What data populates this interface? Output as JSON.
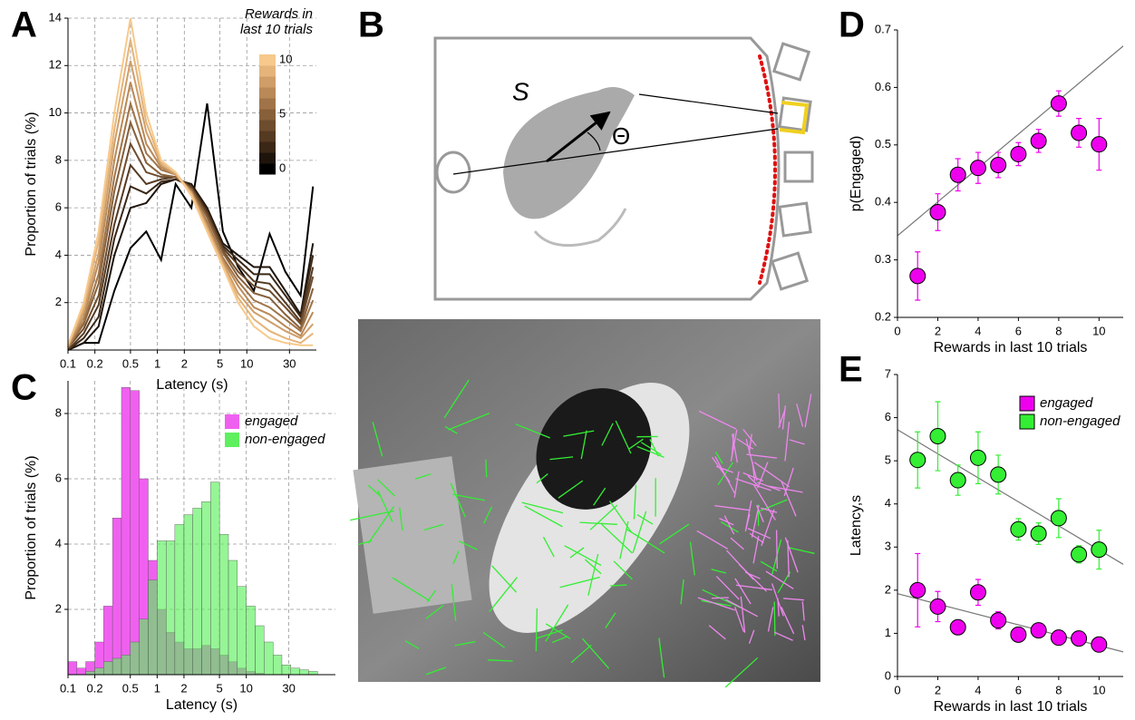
{
  "chart_data": [
    {
      "panel": "A",
      "type": "line",
      "xlabel": "Latency (s)",
      "ylabel": "Proportion of trials (%)",
      "xscale": "log",
      "x": [
        0.1,
        0.15,
        0.22,
        0.33,
        0.5,
        0.75,
        1.1,
        1.6,
        2.4,
        3.6,
        5.4,
        8,
        12,
        18,
        27,
        40,
        55
      ],
      "xlim": [
        0.1,
        60
      ],
      "xticks": [
        0.1,
        0.2,
        0.5,
        1,
        2,
        5,
        10,
        30
      ],
      "ylim": [
        0,
        14
      ],
      "yticks": [
        2,
        4,
        6,
        8,
        10,
        12,
        14
      ],
      "grid": true,
      "colorbar": {
        "title_lines": [
          "Rewards in",
          "last 10 trials"
        ],
        "lim": [
          0,
          10
        ],
        "ticks": [
          0,
          5,
          10
        ]
      },
      "series": [
        {
          "color": "#000000",
          "values": [
            0,
            0.3,
            0.3,
            2.5,
            4.3,
            5,
            3.8,
            7,
            6,
            10.4,
            5,
            3.5,
            2.5,
            4.9,
            3.3,
            2.3,
            6.9
          ]
        },
        {
          "color": "#1e140c",
          "values": [
            0,
            0.3,
            1,
            4,
            6,
            6.2,
            7,
            7.2,
            7,
            6,
            4.5,
            4,
            3.5,
            3.5,
            2.5,
            1.5,
            4.5
          ]
        },
        {
          "color": "#3a2716",
          "values": [
            0,
            0.5,
            1.4,
            4.7,
            6.9,
            6.6,
            7.1,
            7.2,
            6.9,
            5.9,
            4.4,
            3.8,
            3.2,
            3.2,
            2.3,
            1.4,
            4.0
          ]
        },
        {
          "color": "#553a22",
          "values": [
            0,
            0.7,
            1.9,
            5.3,
            7.8,
            7.0,
            7.2,
            7.3,
            6.9,
            5.8,
            4.3,
            3.6,
            2.9,
            2.8,
            2.0,
            1.2,
            3.5
          ]
        },
        {
          "color": "#6e4c2e",
          "values": [
            0.1,
            0.9,
            2.3,
            6,
            8.7,
            7.5,
            7.3,
            7.3,
            6.8,
            5.7,
            4.2,
            3.3,
            2.7,
            2.5,
            1.8,
            1.1,
            3.1
          ]
        },
        {
          "color": "#87603a",
          "values": [
            0.1,
            1.1,
            2.8,
            6.7,
            9.6,
            7.9,
            7.4,
            7.3,
            6.8,
            5.6,
            4.1,
            3.1,
            2.4,
            2.2,
            1.5,
            0.9,
            2.6
          ]
        },
        {
          "color": "#a07448",
          "values": [
            0.1,
            1.2,
            3.2,
            7.3,
            10.4,
            8.3,
            7.6,
            7.4,
            6.7,
            5.4,
            3.9,
            2.9,
            2.1,
            1.8,
            1.3,
            0.8,
            2.1
          ]
        },
        {
          "color": "#b98957",
          "values": [
            0.1,
            1.4,
            3.7,
            8,
            11.3,
            8.7,
            7.7,
            7.4,
            6.7,
            5.3,
            3.8,
            2.7,
            1.8,
            1.5,
            1.0,
            0.6,
            1.6
          ]
        },
        {
          "color": "#cf9e68",
          "values": [
            0.2,
            1.6,
            4.1,
            8.7,
            12.2,
            9.2,
            7.8,
            7.4,
            6.6,
            5.2,
            3.7,
            2.4,
            1.6,
            1.2,
            0.8,
            0.5,
            1.1
          ]
        },
        {
          "color": "#e4b47a",
          "values": [
            0.2,
            1.8,
            4.6,
            9.3,
            13.1,
            9.6,
            7.9,
            7.5,
            6.6,
            5.1,
            3.6,
            2.2,
            1.3,
            0.8,
            0.5,
            0.3,
            0.7
          ]
        },
        {
          "color": "#f7c98c",
          "values": [
            0.2,
            2,
            5,
            10,
            14,
            10,
            8,
            7.5,
            6.5,
            5,
            3.5,
            2,
            1,
            0.5,
            0.3,
            0.2,
            0.2
          ]
        }
      ]
    },
    {
      "panel": "C",
      "type": "histogram",
      "xlabel": "Latency (s)",
      "ylabel": "Proportion of trials (%)",
      "xscale": "log",
      "bins": [
        0.1,
        0.126,
        0.158,
        0.2,
        0.251,
        0.316,
        0.398,
        0.501,
        0.631,
        0.794,
        1,
        1.26,
        1.58,
        2,
        2.51,
        3.16,
        3.98,
        5.01,
        6.31,
        7.94,
        10,
        12.6,
        15.8,
        20,
        25.1,
        31.6,
        39.8,
        50.1,
        63.1
      ],
      "xlim": [
        0.1,
        100
      ],
      "xticks": [
        0.1,
        0.2,
        0.5,
        1,
        2,
        5,
        10,
        30
      ],
      "ylim": [
        0,
        9
      ],
      "yticks": [
        2,
        4,
        6,
        8
      ],
      "grid": true,
      "series": [
        {
          "name": "engaged",
          "color": "#f060f0",
          "values": [
            0.4,
            0.2,
            0.4,
            1.0,
            2.1,
            4.8,
            8.8,
            8.7,
            6.0,
            3.5,
            2.0,
            1.3,
            1.0,
            0.8,
            0.8,
            0.9,
            0.8,
            0.6,
            0.4,
            0.2,
            0.1,
            0.05,
            0,
            0,
            0,
            0,
            0,
            0
          ]
        },
        {
          "name": "non-engaged",
          "color": "#5ef05e",
          "values": [
            0,
            0,
            0.1,
            0.2,
            0.4,
            0.5,
            0.6,
            1.0,
            1.7,
            2.9,
            4.1,
            4.1,
            4.6,
            4.9,
            5.1,
            5.3,
            5.9,
            4.3,
            3.5,
            2.7,
            2.1,
            1.5,
            1.0,
            0.6,
            0.3,
            0.2,
            0.15,
            0.1
          ]
        }
      ]
    },
    {
      "panel": "D",
      "type": "scatter",
      "xlabel": "Rewards in last 10 trials",
      "ylabel": "p(Engaged)",
      "x": [
        1,
        2,
        3,
        4,
        5,
        6,
        7,
        8,
        9,
        10
      ],
      "xlim": [
        0,
        11.2
      ],
      "xticks": [
        0,
        2,
        4,
        6,
        8,
        10
      ],
      "ylim": [
        0.2,
        0.7
      ],
      "yticks": [
        0.2,
        0.3,
        0.4,
        0.5,
        0.6,
        0.7
      ],
      "grid": false,
      "series": [
        {
          "color": "#ee00ee",
          "values": [
            0.272,
            0.383,
            0.448,
            0.46,
            0.465,
            0.484,
            0.507,
            0.572,
            0.521,
            0.501
          ],
          "errors": [
            0.042,
            0.032,
            0.028,
            0.027,
            0.022,
            0.02,
            0.02,
            0.022,
            0.025,
            0.045
          ],
          "fit": {
            "x": [
              0,
              11.2
            ],
            "y": [
              0.342,
              0.672
            ]
          }
        }
      ]
    },
    {
      "panel": "E",
      "type": "scatter",
      "xlabel": "Rewards in last 10 trials",
      "ylabel": "Latency,s",
      "x": [
        1,
        2,
        3,
        4,
        5,
        6,
        7,
        8,
        9,
        10
      ],
      "xlim": [
        0,
        11.2
      ],
      "xticks": [
        0,
        2,
        4,
        6,
        8,
        10
      ],
      "ylim": [
        0,
        7
      ],
      "yticks": [
        0,
        1,
        2,
        3,
        4,
        5,
        6,
        7
      ],
      "grid": false,
      "series": [
        {
          "name": "engaged",
          "color": "#ee00ee",
          "values": [
            2.0,
            1.62,
            1.14,
            1.95,
            1.3,
            0.97,
            1.07,
            0.9,
            0.88,
            0.74
          ],
          "errors": [
            0.85,
            0.35,
            0.1,
            0.3,
            0.2,
            0.1,
            0.1,
            0.1,
            0.1,
            0.1
          ],
          "fit": {
            "x": [
              0,
              11.2
            ],
            "y": [
              1.92,
              0.57
            ]
          }
        },
        {
          "name": "non-engaged",
          "color": "#33ee33",
          "values": [
            5.02,
            5.57,
            4.55,
            5.07,
            4.68,
            3.41,
            3.31,
            3.67,
            2.83,
            2.94
          ],
          "errors": [
            0.65,
            0.8,
            0.35,
            0.6,
            0.45,
            0.25,
            0.25,
            0.45,
            0.2,
            0.45
          ],
          "fit": {
            "x": [
              0,
              11.2
            ],
            "y": [
              5.72,
              2.6
            ]
          }
        }
      ]
    }
  ],
  "diagram": {
    "panel": "B",
    "distance_label": "S",
    "angle_label": "Θ"
  }
}
